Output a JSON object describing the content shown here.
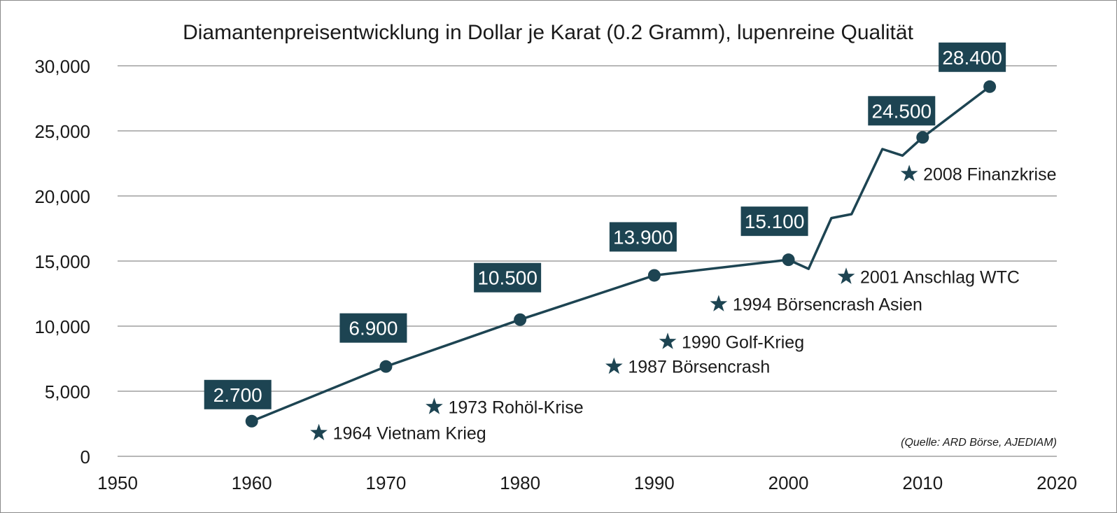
{
  "chart_data": {
    "type": "line",
    "title": "Diamantenpreisentwicklung in Dollar je Karat (0.2 Gramm), lupenreine Qualität",
    "xlabel": "",
    "ylabel": "",
    "xlim": [
      1950,
      2020
    ],
    "ylim": [
      0,
      30000
    ],
    "grid": true,
    "x_ticks": [
      1950,
      1960,
      1970,
      1980,
      1990,
      2000,
      2010,
      2020
    ],
    "x_tick_labels": [
      "1950",
      "1960",
      "1970",
      "1980",
      "1990",
      "2000",
      "2010",
      "2020"
    ],
    "y_ticks": [
      0,
      5000,
      10000,
      15000,
      20000,
      25000,
      30000
    ],
    "y_tick_labels": [
      "0",
      "5,000",
      "10,000",
      "15,000",
      "20,000",
      "25,000",
      "30,000"
    ],
    "series": [
      {
        "x": [
          1960,
          1970,
          1980,
          1990,
          2000,
          2001.5,
          2003.2,
          2004.7,
          2007,
          2008.5,
          2010,
          2015
        ],
        "y": [
          2700,
          6900,
          10500,
          13900,
          15100,
          14400,
          18300,
          18600,
          23600,
          23100,
          24500,
          28400
        ]
      }
    ],
    "markers": [
      {
        "x": 1960,
        "y": 2700,
        "label": "2.700"
      },
      {
        "x": 1970,
        "y": 6900,
        "label": "6.900"
      },
      {
        "x": 1980,
        "y": 10500,
        "label": "10.500"
      },
      {
        "x": 1990,
        "y": 13900,
        "label": "13.900"
      },
      {
        "x": 2000,
        "y": 15100,
        "label": "15.100"
      },
      {
        "x": 2010,
        "y": 24500,
        "label": "24.500"
      },
      {
        "x": 2015,
        "y": 28400,
        "label": "28.400"
      }
    ],
    "annotations": [
      {
        "text": "1964 Vietnam Krieg",
        "x": 1965,
        "y": 1800
      },
      {
        "text": "1973 Rohöl-Krise",
        "x": 1973.6,
        "y": 3800
      },
      {
        "text": "1987 Börsencrash",
        "x": 1987,
        "y": 6900
      },
      {
        "text": "1990 Golf-Krieg",
        "x": 1991,
        "y": 8800
      },
      {
        "text": "1994 Börsencrash Asien",
        "x": 1994.8,
        "y": 11700
      },
      {
        "text": "2001 Anschlag WTC",
        "x": 2004.3,
        "y": 13800
      },
      {
        "text": "2008 Finanzkrise",
        "x": 2009,
        "y": 21700
      }
    ],
    "source": "(Quelle: ARD Börse, AJEDIAM)",
    "colors": {
      "line": "#1d4452",
      "label_bg": "#1d4452",
      "label_text": "#ffffff",
      "grid": "#8c8c8c",
      "text": "#1a1a1a"
    }
  }
}
